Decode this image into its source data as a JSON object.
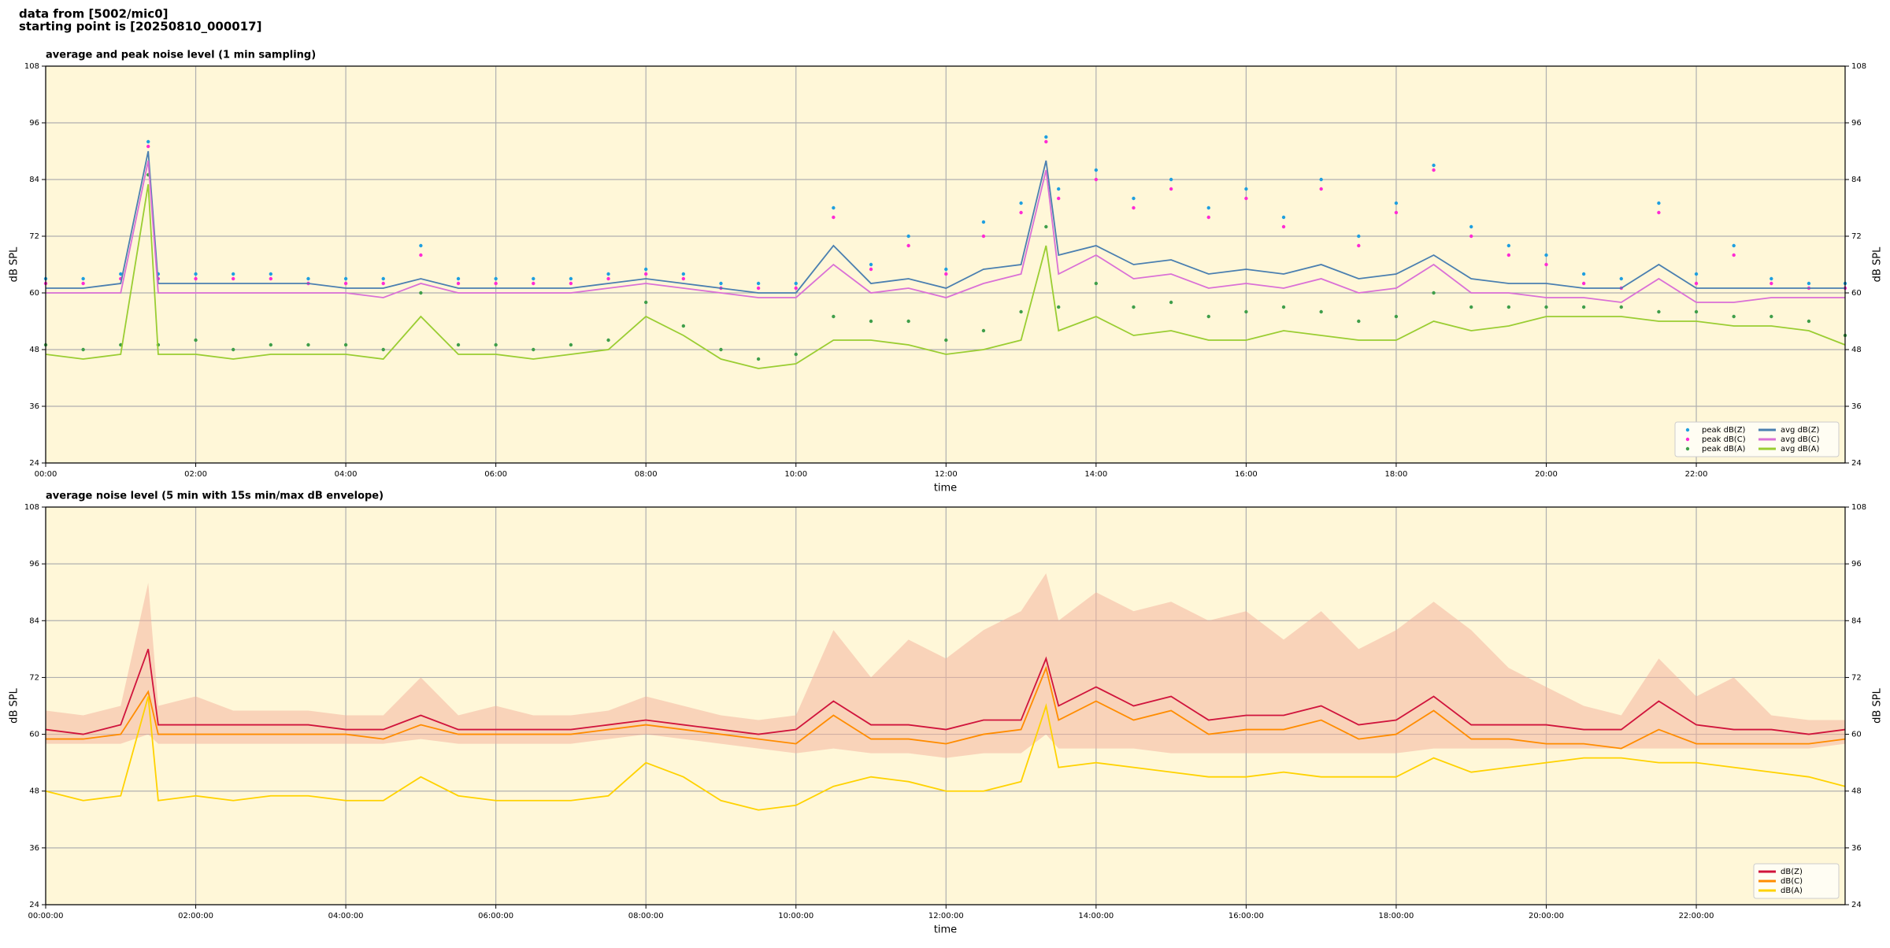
{
  "header": [
    "data from [5002/mic0]",
    "starting point is [20250810_000017]"
  ],
  "chart_data": [
    {
      "type": "line",
      "title": "average and peak noise level (1 min sampling)",
      "xlabel": "time",
      "ylabel": "dB SPL",
      "x": [
        "00:00",
        "00:30",
        "01:00",
        "01:22",
        "01:30",
        "02:00",
        "02:30",
        "03:00",
        "03:30",
        "04:00",
        "04:30",
        "05:00",
        "05:30",
        "06:00",
        "06:30",
        "07:00",
        "07:30",
        "08:00",
        "08:30",
        "09:00",
        "09:30",
        "10:00",
        "10:30",
        "11:00",
        "11:30",
        "12:00",
        "12:30",
        "13:00",
        "13:20",
        "13:30",
        "14:00",
        "14:30",
        "15:00",
        "15:30",
        "16:00",
        "16:30",
        "17:00",
        "17:30",
        "18:00",
        "18:30",
        "19:00",
        "19:30",
        "20:00",
        "20:30",
        "21:00",
        "21:30",
        "22:00",
        "22:30",
        "23:00",
        "23:30",
        "23:59"
      ],
      "xlim": [
        "00:00",
        "23:59"
      ],
      "xticks": [
        "00:00",
        "02:00",
        "04:00",
        "06:00",
        "08:00",
        "10:00",
        "12:00",
        "14:00",
        "16:00",
        "18:00",
        "20:00",
        "22:00"
      ],
      "ylim": [
        24,
        108
      ],
      "yticks": [
        24,
        36,
        48,
        60,
        72,
        84,
        96,
        108
      ],
      "grid": true,
      "right_axis": true,
      "legend": "lower right",
      "legend_columns": 2,
      "series": [
        {
          "name": "peak dB(Z)",
          "kind": "scatter",
          "color": "#1e9fe0",
          "values": [
            63,
            63,
            64,
            92,
            64,
            64,
            64,
            64,
            63,
            63,
            63,
            70,
            63,
            63,
            63,
            63,
            64,
            65,
            64,
            62,
            62,
            62,
            78,
            66,
            72,
            65,
            75,
            79,
            93,
            82,
            86,
            80,
            84,
            78,
            82,
            76,
            84,
            72,
            79,
            87,
            74,
            70,
            68,
            64,
            63,
            79,
            64,
            70,
            63,
            62,
            62
          ]
        },
        {
          "name": "peak dB(C)",
          "kind": "scatter",
          "color": "#ff2ad4",
          "values": [
            62,
            62,
            63,
            91,
            63,
            63,
            63,
            63,
            62,
            62,
            62,
            68,
            62,
            62,
            62,
            62,
            63,
            64,
            63,
            61,
            61,
            61,
            76,
            65,
            70,
            64,
            72,
            77,
            92,
            80,
            84,
            78,
            82,
            76,
            80,
            74,
            82,
            70,
            77,
            86,
            72,
            68,
            66,
            62,
            61,
            77,
            62,
            68,
            62,
            61,
            61
          ]
        },
        {
          "name": "peak dB(A)",
          "kind": "scatter",
          "color": "#3f9e4a",
          "values": [
            49,
            48,
            49,
            85,
            49,
            50,
            48,
            49,
            49,
            49,
            48,
            60,
            49,
            49,
            48,
            49,
            50,
            58,
            53,
            48,
            46,
            47,
            55,
            54,
            54,
            50,
            52,
            56,
            74,
            57,
            62,
            57,
            58,
            55,
            56,
            57,
            56,
            54,
            55,
            60,
            57,
            57,
            57,
            57,
            57,
            56,
            56,
            55,
            55,
            54,
            51
          ]
        },
        {
          "name": "avg dB(Z)",
          "kind": "line",
          "color": "#4a7fb0",
          "values": [
            61,
            61,
            62,
            90,
            62,
            62,
            62,
            62,
            62,
            61,
            61,
            63,
            61,
            61,
            61,
            61,
            62,
            63,
            62,
            61,
            60,
            60,
            70,
            62,
            63,
            61,
            65,
            66,
            88,
            68,
            70,
            66,
            67,
            64,
            65,
            64,
            66,
            63,
            64,
            68,
            63,
            62,
            62,
            61,
            61,
            66,
            61,
            61,
            61,
            61,
            61
          ]
        },
        {
          "name": "avg dB(C)",
          "kind": "line",
          "color": "#da70d6",
          "values": [
            60,
            60,
            60,
            88,
            60,
            60,
            60,
            60,
            60,
            60,
            59,
            62,
            60,
            60,
            60,
            60,
            61,
            62,
            61,
            60,
            59,
            59,
            66,
            60,
            61,
            59,
            62,
            64,
            86,
            64,
            68,
            63,
            64,
            61,
            62,
            61,
            63,
            60,
            61,
            66,
            60,
            60,
            59,
            59,
            58,
            63,
            58,
            58,
            59,
            59,
            59
          ]
        },
        {
          "name": "avg dB(A)",
          "kind": "line",
          "color": "#9acd32",
          "values": [
            47,
            46,
            47,
            83,
            47,
            47,
            46,
            47,
            47,
            47,
            46,
            55,
            47,
            47,
            46,
            47,
            48,
            55,
            51,
            46,
            44,
            45,
            50,
            50,
            49,
            47,
            48,
            50,
            70,
            52,
            55,
            51,
            52,
            50,
            50,
            52,
            51,
            50,
            50,
            54,
            52,
            53,
            55,
            55,
            55,
            54,
            54,
            53,
            53,
            52,
            49
          ]
        }
      ]
    },
    {
      "type": "line",
      "title": "average noise level (5 min with 15s min/max dB envelope)",
      "xlabel": "time",
      "ylabel": "dB SPL",
      "x": [
        "00:00:00",
        "00:30:00",
        "01:00:00",
        "01:22:00",
        "01:30:00",
        "02:00:00",
        "02:30:00",
        "03:00:00",
        "03:30:00",
        "04:00:00",
        "04:30:00",
        "05:00:00",
        "05:30:00",
        "06:00:00",
        "06:30:00",
        "07:00:00",
        "07:30:00",
        "08:00:00",
        "08:30:00",
        "09:00:00",
        "09:30:00",
        "10:00:00",
        "10:30:00",
        "11:00:00",
        "11:30:00",
        "12:00:00",
        "12:30:00",
        "13:00:00",
        "13:20:00",
        "13:30:00",
        "14:00:00",
        "14:30:00",
        "15:00:00",
        "15:30:00",
        "16:00:00",
        "16:30:00",
        "17:00:00",
        "17:30:00",
        "18:00:00",
        "18:30:00",
        "19:00:00",
        "19:30:00",
        "20:00:00",
        "20:30:00",
        "21:00:00",
        "21:30:00",
        "22:00:00",
        "22:30:00",
        "23:00:00",
        "23:30:00",
        "23:59:00"
      ],
      "xlim": [
        "00:00:00",
        "23:59:00"
      ],
      "xticks": [
        "00:00:00",
        "02:00:00",
        "04:00:00",
        "06:00:00",
        "08:00:00",
        "10:00:00",
        "12:00:00",
        "14:00:00",
        "16:00:00",
        "18:00:00",
        "20:00:00",
        "22:00:00"
      ],
      "ylim": [
        24,
        108
      ],
      "yticks": [
        24,
        36,
        48,
        60,
        72,
        84,
        96,
        108
      ],
      "grid": true,
      "right_axis": true,
      "legend": "lower right",
      "legend_columns": 1,
      "envelope": {
        "color": "#f4b09a",
        "low": [
          58,
          58,
          58,
          60,
          58,
          58,
          58,
          58,
          58,
          58,
          58,
          59,
          58,
          58,
          58,
          58,
          59,
          60,
          59,
          58,
          57,
          56,
          57,
          56,
          56,
          55,
          56,
          56,
          60,
          57,
          57,
          57,
          56,
          56,
          56,
          56,
          56,
          56,
          56,
          57,
          57,
          57,
          57,
          57,
          57,
          57,
          57,
          57,
          57,
          57,
          58
        ],
        "high": [
          65,
          64,
          66,
          92,
          66,
          68,
          65,
          65,
          65,
          64,
          64,
          72,
          64,
          66,
          64,
          64,
          65,
          68,
          66,
          64,
          63,
          64,
          82,
          72,
          80,
          76,
          82,
          86,
          94,
          84,
          90,
          86,
          88,
          84,
          86,
          80,
          86,
          78,
          82,
          88,
          82,
          74,
          70,
          66,
          64,
          76,
          68,
          72,
          64,
          63,
          63
        ]
      },
      "series": [
        {
          "name": "dB(Z)",
          "kind": "line",
          "color": "#d0143c",
          "values": [
            61,
            60,
            62,
            78,
            62,
            62,
            62,
            62,
            62,
            61,
            61,
            64,
            61,
            61,
            61,
            61,
            62,
            63,
            62,
            61,
            60,
            61,
            67,
            62,
            62,
            61,
            63,
            63,
            76,
            66,
            70,
            66,
            68,
            63,
            64,
            64,
            66,
            62,
            63,
            68,
            62,
            62,
            62,
            61,
            61,
            67,
            62,
            61,
            61,
            60,
            61
          ]
        },
        {
          "name": "dB(C)",
          "kind": "line",
          "color": "#ff8c00",
          "values": [
            59,
            59,
            60,
            69,
            60,
            60,
            60,
            60,
            60,
            60,
            59,
            62,
            60,
            60,
            60,
            60,
            61,
            62,
            61,
            60,
            59,
            58,
            64,
            59,
            59,
            58,
            60,
            61,
            74,
            63,
            67,
            63,
            65,
            60,
            61,
            61,
            63,
            59,
            60,
            65,
            59,
            59,
            58,
            58,
            57,
            61,
            58,
            58,
            58,
            58,
            59
          ]
        },
        {
          "name": "dB(A)",
          "kind": "line",
          "color": "#ffd200",
          "values": [
            48,
            46,
            47,
            68,
            46,
            47,
            46,
            47,
            47,
            46,
            46,
            51,
            47,
            46,
            46,
            46,
            47,
            54,
            51,
            46,
            44,
            45,
            49,
            51,
            50,
            48,
            48,
            50,
            66,
            53,
            54,
            53,
            52,
            51,
            51,
            52,
            51,
            51,
            51,
            55,
            52,
            53,
            54,
            55,
            55,
            54,
            54,
            53,
            52,
            51,
            49
          ]
        }
      ]
    }
  ]
}
